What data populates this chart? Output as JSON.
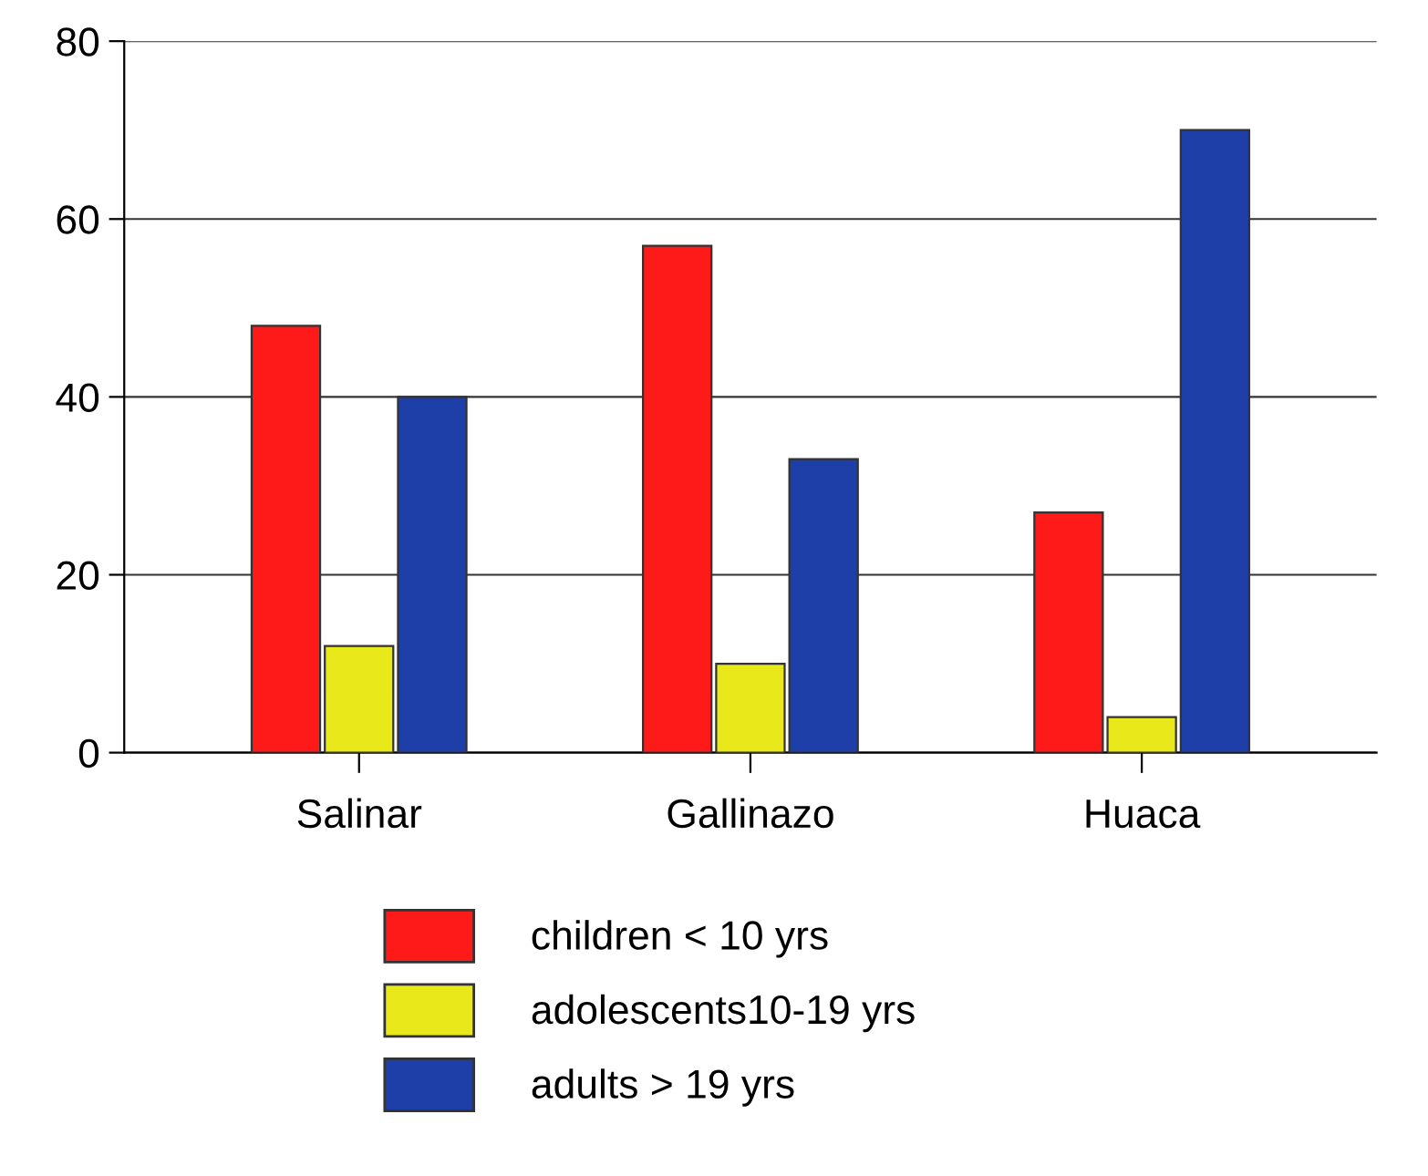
{
  "chart_data": {
    "type": "bar",
    "categories": [
      "Salinar",
      "Gallinazo",
      "Huaca"
    ],
    "series": [
      {
        "name": "children < 10 yrs",
        "color": "#ff1a1a",
        "values": [
          48,
          57,
          27
        ]
      },
      {
        "name": "adolescents10-19 yrs",
        "color": "#e8e81a",
        "values": [
          12,
          10,
          4
        ]
      },
      {
        "name": "adults > 19 yrs",
        "color": "#1f3fa8",
        "values": [
          40,
          33,
          70
        ]
      }
    ],
    "ylim": [
      0,
      80
    ],
    "yticks": [
      0,
      20,
      40,
      60,
      80
    ],
    "grid": "y",
    "legend": "bottom"
  }
}
